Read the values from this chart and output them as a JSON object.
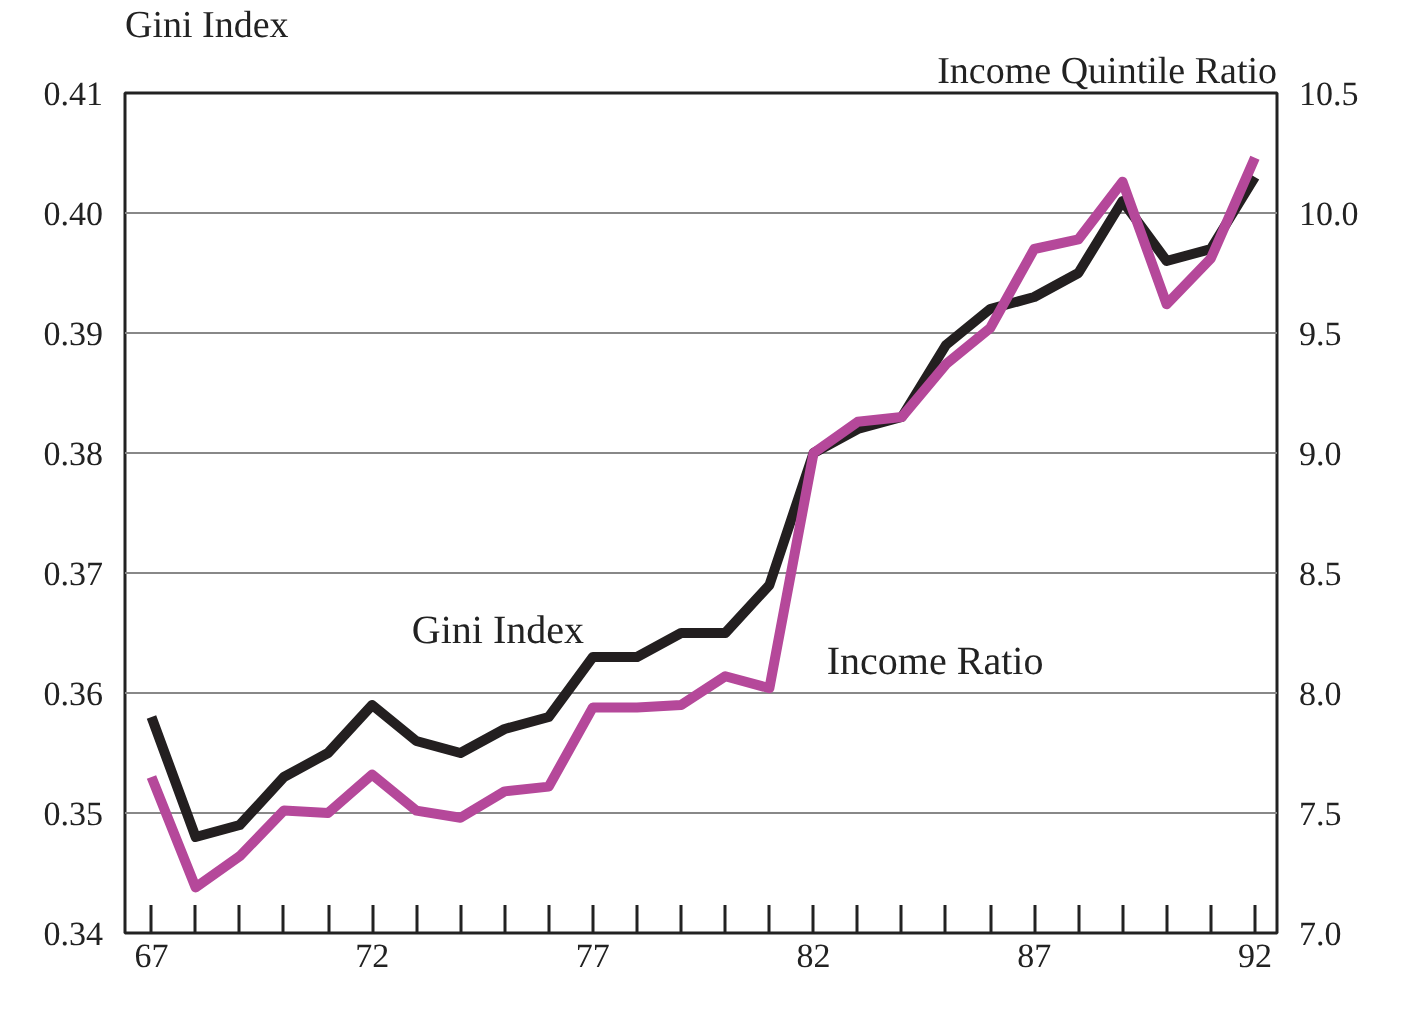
{
  "chart_data": {
    "type": "line",
    "ylabel": "Gini Index",
    "y2label": "Income Quintile Ratio",
    "x": [
      67,
      68,
      69,
      70,
      71,
      72,
      73,
      74,
      75,
      76,
      77,
      78,
      79,
      80,
      81,
      82,
      83,
      84,
      85,
      86,
      87,
      88,
      89,
      90,
      91,
      92
    ],
    "series": [
      {
        "name": "Gini Index",
        "color": "#231f20",
        "values": [
          0.358,
          0.348,
          0.349,
          0.353,
          0.355,
          0.359,
          0.356,
          0.355,
          0.357,
          0.358,
          0.363,
          0.363,
          0.365,
          0.365,
          0.369,
          0.38,
          0.382,
          0.383,
          0.389,
          0.392,
          0.393,
          0.395,
          0.401,
          0.396,
          0.397,
          0.403
        ]
      },
      {
        "name": "Income Ratio",
        "color": "#b5489a",
        "axis": "y2",
        "values": [
          7.65,
          7.19,
          7.32,
          7.51,
          7.5,
          7.66,
          7.51,
          7.48,
          7.59,
          7.61,
          7.94,
          7.94,
          7.95,
          8.07,
          8.02,
          9.0,
          9.13,
          9.15,
          9.37,
          9.52,
          9.85,
          9.89,
          10.13,
          9.62,
          9.81,
          10.23
        ]
      }
    ],
    "xlim": [
      66.4,
      92.5
    ],
    "xticks": [
      67,
      {
        "value": 68,
        "label": null
      },
      {
        "value": 69,
        "label": null
      },
      {
        "value": 70,
        "label": null
      },
      {
        "value": 71,
        "label": null
      },
      72,
      {
        "value": 73,
        "label": null
      },
      {
        "value": 74,
        "label": null
      },
      {
        "value": 75,
        "label": null
      },
      {
        "value": 76,
        "label": null
      },
      77,
      {
        "value": 78,
        "label": null
      },
      {
        "value": 79,
        "label": null
      },
      {
        "value": 80,
        "label": null
      },
      {
        "value": 81,
        "label": null
      },
      82,
      {
        "value": 83,
        "label": null
      },
      {
        "value": 84,
        "label": null
      },
      {
        "value": 85,
        "label": null
      },
      {
        "value": 86,
        "label": null
      },
      87,
      {
        "value": 88,
        "label": null
      },
      {
        "value": 89,
        "label": null
      },
      {
        "value": 90,
        "label": null
      },
      {
        "value": 91,
        "label": null
      },
      92
    ],
    "ylim": [
      0.34,
      0.41
    ],
    "yticks": [
      {
        "value": 0.34,
        "label": "0.34"
      },
      {
        "value": 0.35,
        "label": "0.35"
      },
      {
        "value": 0.36,
        "label": "0.36"
      },
      {
        "value": 0.37,
        "label": "0.37"
      },
      {
        "value": 0.38,
        "label": "0.38"
      },
      {
        "value": 0.39,
        "label": "0.39"
      },
      {
        "value": 0.4,
        "label": "0.40"
      },
      {
        "value": 0.41,
        "label": "0.41"
      }
    ],
    "y2lim": [
      7.0,
      10.5
    ],
    "y2ticks": [
      {
        "value": 7,
        "label": "7.0"
      },
      {
        "value": 7.5,
        "label": "7.5"
      },
      {
        "value": 8,
        "label": "8.0"
      },
      {
        "value": 8.5,
        "label": "8.5"
      },
      {
        "value": 9,
        "label": "9.0"
      },
      {
        "value": 9.5,
        "label": "9.5"
      },
      {
        "value": 10,
        "label": "10.0"
      },
      {
        "value": 10.5,
        "label": "10.5"
      }
    ],
    "grid": "y",
    "legend": false,
    "line_style": "solid",
    "marker": "none"
  }
}
